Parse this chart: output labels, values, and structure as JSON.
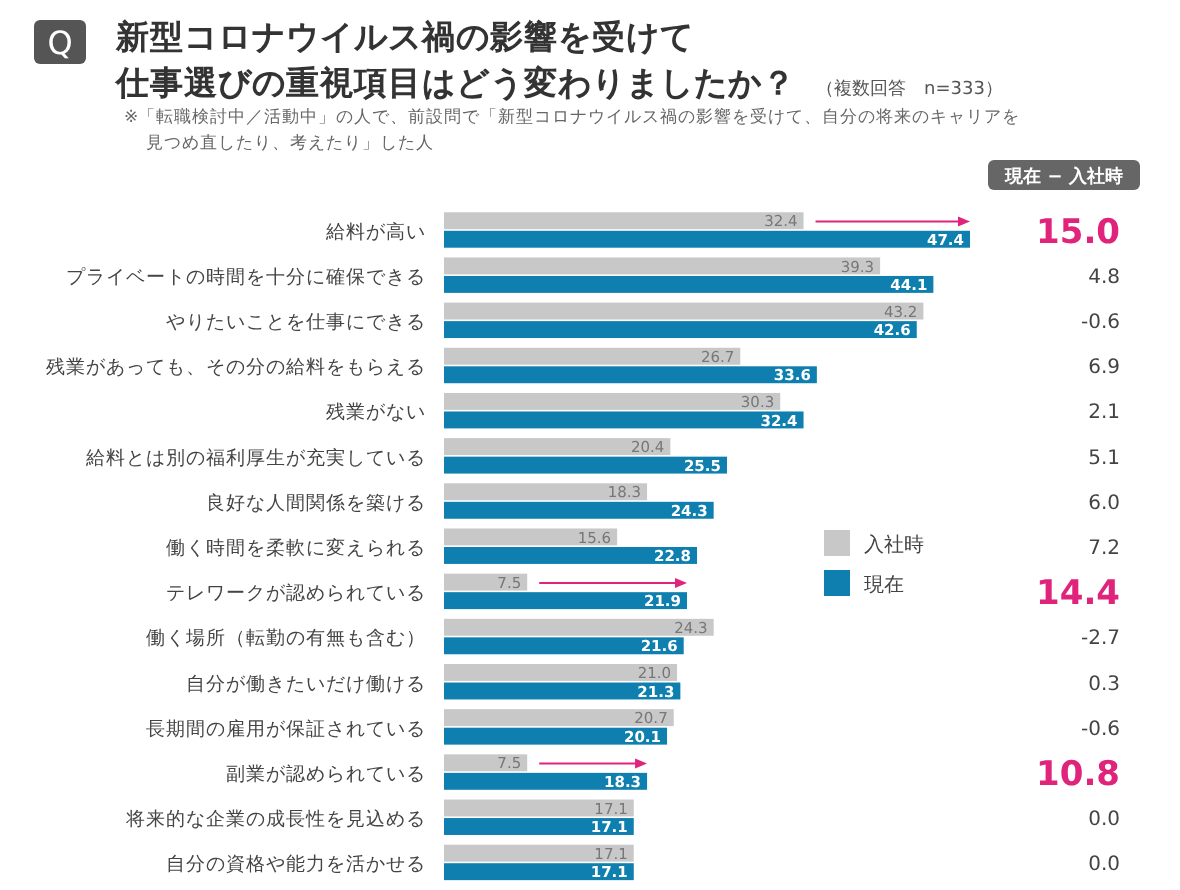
{
  "chart_data": {
    "type": "bar",
    "orientation": "horizontal",
    "title": "新型コロナウイルス禍の影響を受けて仕事選びの重視項目はどう変わりましたか？",
    "subtitle": "（複数回答　n=333）",
    "categories": [
      "給料が高い",
      "プライベートの時間を十分に確保できる",
      "やりたいことを仕事にできる",
      "残業があっても、その分の給料をもらえる",
      "残業がない",
      "給料とは別の福利厚生が充実している",
      "良好な人間関係を築ける",
      "働く時間を柔軟に変えられる",
      "テレワークが認められている",
      "働く場所（転勤の有無も含む）",
      "自分が働きたいだけ働ける",
      "長期間の雇用が保証されている",
      "副業が認められている",
      "将来的な企業の成長性を見込める",
      "自分の資格や能力を活かせる"
    ],
    "series": [
      {
        "name": "入社時",
        "color": "#c8c8c8",
        "values": [
          32.4,
          39.3,
          43.2,
          26.7,
          30.3,
          20.4,
          18.3,
          15.6,
          7.5,
          24.3,
          21.0,
          20.7,
          7.5,
          17.1,
          17.1
        ],
        "value_labels": [
          "32.4",
          "39.3",
          "43.2",
          "26.7",
          "30.3",
          "20.4",
          "18.3",
          "15.6",
          "7.5",
          "24.3",
          "21.0",
          "20.7",
          "7.5",
          "17.1",
          "17.1"
        ]
      },
      {
        "name": "現在",
        "color": "#0e7fae",
        "values": [
          47.4,
          44.1,
          42.6,
          33.6,
          32.4,
          25.5,
          24.3,
          22.8,
          21.9,
          21.6,
          21.3,
          20.1,
          18.3,
          17.1,
          17.1
        ],
        "value_labels": [
          "47.4",
          "44.1",
          "42.6",
          "33.6",
          "32.4",
          "25.5",
          "24.3",
          "22.8",
          "21.9",
          "21.6",
          "21.3",
          "20.1",
          "18.3",
          "17.1",
          "17.1"
        ]
      }
    ],
    "legend": "right",
    "annotations": [
      "Q",
      "※「転職検討中／活動中」の人で、前設問で「新型コロナウイルス禍の影響を受けて、自分の将来のキャリアを見つめ直したり、考えたり」した人",
      "現在 − 入社時",
      "15.0",
      "4.8",
      "-0.6",
      "6.9",
      "2.1",
      "5.1",
      "6.0",
      "7.2",
      "14.4",
      "-2.7",
      "0.3",
      "-0.6",
      "10.8",
      "0.0",
      "0.0"
    ]
  }
}
